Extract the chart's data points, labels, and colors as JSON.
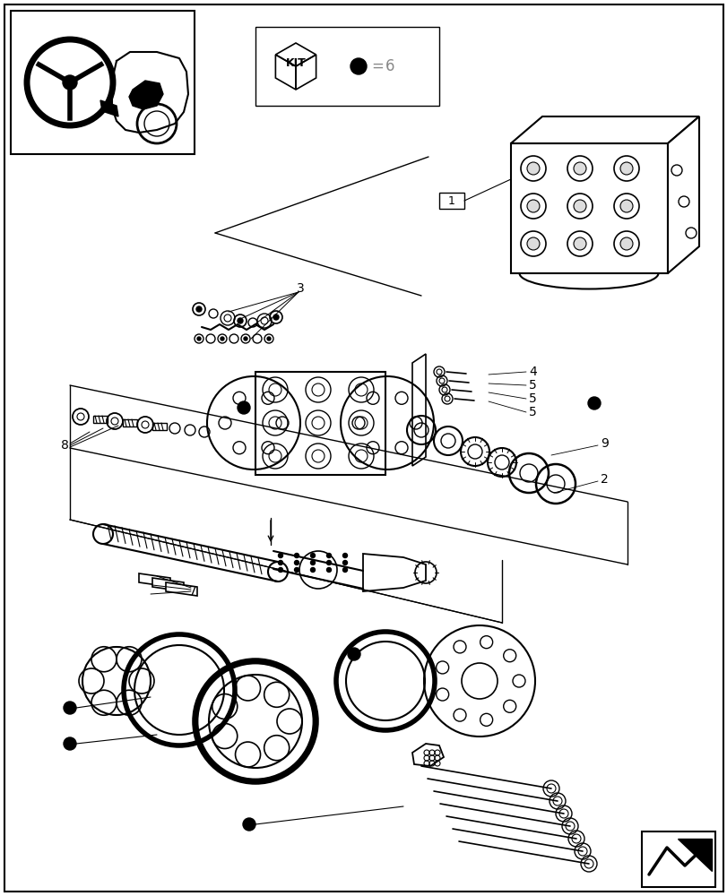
{
  "bg_color": "#ffffff",
  "line_color": "#000000",
  "gray_color": "#888888",
  "light_gray": "#cccccc",
  "kit_label": "KIT",
  "bullet_color": "#000000"
}
